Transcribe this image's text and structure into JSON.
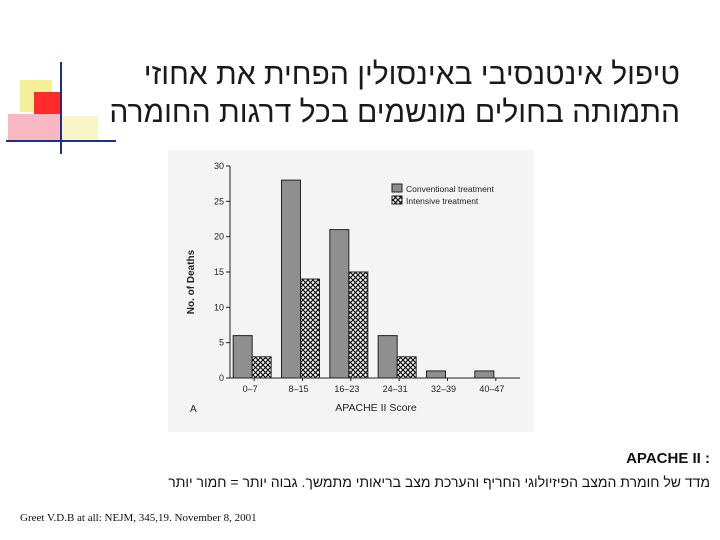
{
  "title_line1": "טיפול אינטנסיבי באינסולין הפחית את אחוזי",
  "title_line2": "התמותה בחולים מונשמים בכל דרגות החומרה",
  "chart_data": {
    "type": "bar",
    "panel_label": "A",
    "xlabel": "APACHE II Score",
    "ylabel": "No. of Deaths",
    "categories": [
      "0–7",
      "8–15",
      "16–23",
      "24–31",
      "32–39",
      "40–47"
    ],
    "ylim": [
      0,
      30
    ],
    "yticks": [
      0,
      5,
      10,
      15,
      20,
      25,
      30
    ],
    "legend_position": "top-right",
    "series": [
      {
        "name": "Conventional treatment",
        "values": [
          6,
          28,
          21,
          6,
          1,
          1
        ],
        "fill": "#8f8f8f"
      },
      {
        "name": "Intensive treatment",
        "values": [
          3,
          14,
          15,
          3,
          0,
          0
        ],
        "fill": "hatch"
      }
    ]
  },
  "apache_heading": ": APACHE  II",
  "apache_definition": "מדד של חומרת המצב הפיזיולוגי החריף והערכת מצב בריאותי מתמשך.   גבוה יותר = חמור יותר",
  "citation": "Greet V.D.B at all: NEJM, 345,19. November 8, 2001",
  "colors": {
    "accent_red": "#ff2a2a",
    "accent_pink": "#f7b8c4",
    "accent_blue": "#1c2f8f",
    "accent_yellow": "#f6ef9a"
  }
}
